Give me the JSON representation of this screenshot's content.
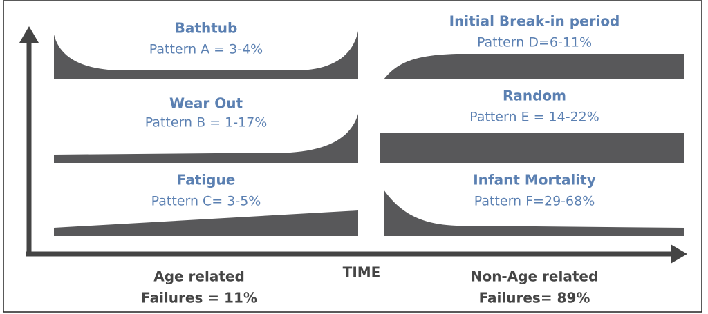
{
  "patterns": [
    {
      "name": "Bathtub",
      "label": "Pattern A = 3-4%"
    },
    {
      "name": "Wear Out",
      "label": "Pattern B = 1-17%"
    },
    {
      "name": "Fatigue",
      "label": "Pattern C= 3-5%"
    },
    {
      "name": "Initial Break-in period",
      "label": "Pattern D=6-11%"
    },
    {
      "name": "Random",
      "label": "Pattern E = 14-22%"
    },
    {
      "name": "Infant Mortality",
      "label": "Pattern F=29-68%"
    }
  ],
  "axis_label": "TIME",
  "groups": [
    {
      "line1": "Age related",
      "line2": "Failures = 11%"
    },
    {
      "line1": "Non-Age related",
      "line2": "Failures= 89%"
    }
  ]
}
